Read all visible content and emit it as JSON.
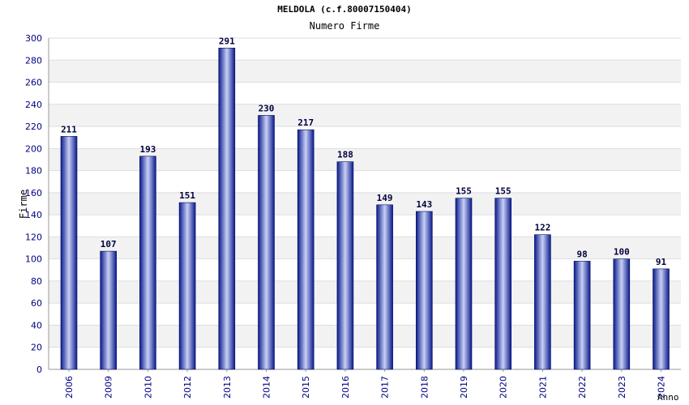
{
  "chart_data": {
    "type": "bar",
    "title": "MELDOLA (c.f.80007150404)",
    "subtitle": "Numero Firme",
    "xlabel": "Anno",
    "ylabel": "Firme",
    "categories": [
      "2006",
      "2009",
      "2010",
      "2012",
      "2013",
      "2014",
      "2015",
      "2016",
      "2017",
      "2018",
      "2019",
      "2020",
      "2021",
      "2022",
      "2023",
      "2024"
    ],
    "values": [
      211,
      107,
      193,
      151,
      291,
      230,
      217,
      188,
      149,
      143,
      155,
      155,
      122,
      98,
      100,
      91
    ],
    "ylim": [
      0,
      300
    ],
    "yticks": [
      0,
      20,
      40,
      60,
      80,
      100,
      120,
      140,
      160,
      180,
      200,
      220,
      240,
      260,
      280,
      300
    ],
    "grid": true,
    "legend": "none",
    "colors": {
      "bar_dark": "#0a1a8c",
      "bar_light": "#c8d0f5",
      "tick_text": "#000080",
      "grid_band": "#f2f2f2"
    }
  }
}
